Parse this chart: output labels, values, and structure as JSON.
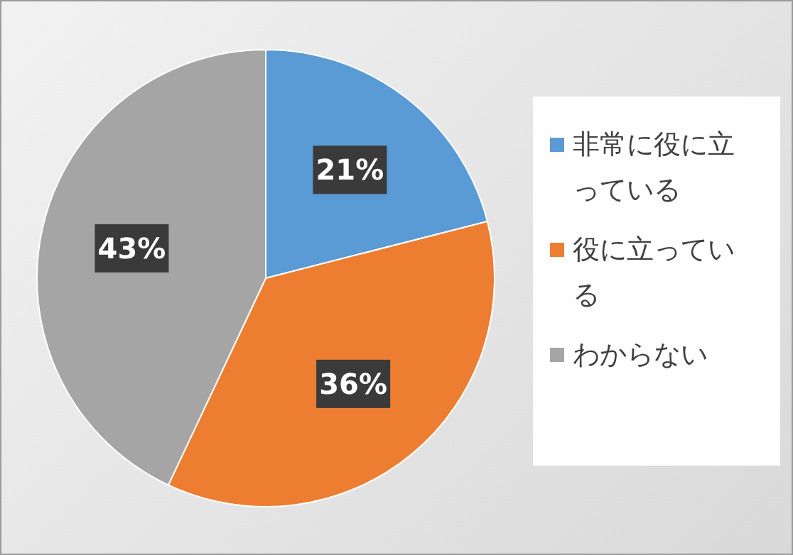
{
  "chart_data": {
    "type": "pie",
    "categories": [
      "非常に役に立っている",
      "役に立っている",
      "わからない"
    ],
    "values": [
      21,
      36,
      43
    ],
    "colors": [
      "#5b9bd5",
      "#ed7d31",
      "#a5a5a5"
    ],
    "value_labels": [
      "21%",
      "36%",
      "43%"
    ],
    "legend": "right"
  }
}
